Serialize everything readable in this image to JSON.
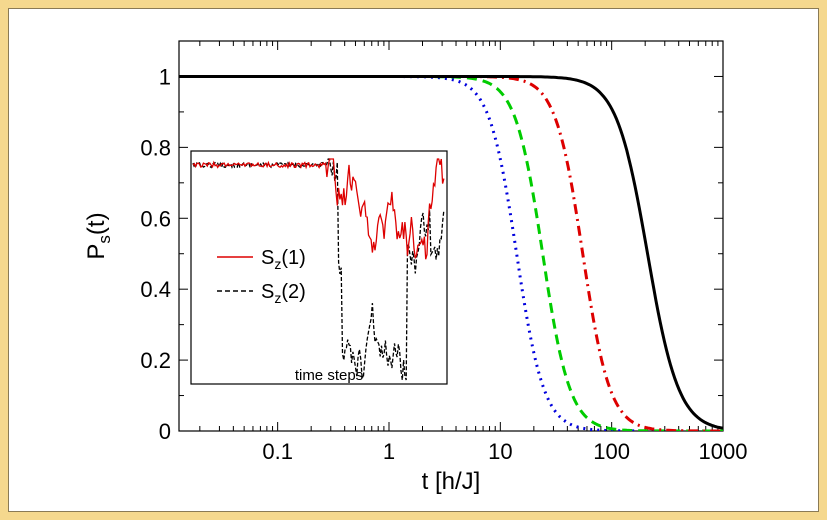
{
  "chart_data": {
    "type": "line",
    "xlabel": "t [h/J]",
    "ylabel_main": "P",
    "ylabel_sub": "s",
    "ylabel_tail": "(t)",
    "x_scale": "log",
    "xlim": [
      0.013,
      1000
    ],
    "ylim": [
      0,
      1.1
    ],
    "x_ticks": [
      {
        "value": 0.1,
        "label": "0.1"
      },
      {
        "value": 1,
        "label": "1"
      },
      {
        "value": 10,
        "label": "10"
      },
      {
        "value": 100,
        "label": "100"
      },
      {
        "value": 1000,
        "label": "1000"
      }
    ],
    "y_ticks": [
      {
        "value": 0,
        "label": "0"
      },
      {
        "value": 0.2,
        "label": "0.2"
      },
      {
        "value": 0.4,
        "label": "0.4"
      },
      {
        "value": 0.6,
        "label": "0.6"
      },
      {
        "value": 0.8,
        "label": "0.8"
      },
      {
        "value": 1,
        "label": "1"
      }
    ],
    "series": [
      {
        "color": "#0000dd",
        "dash": "dotted",
        "t_half": 14,
        "width": 0.35
      },
      {
        "color": "#00cc00",
        "dash": "dashed",
        "t_half": 24,
        "width": 0.35
      },
      {
        "color": "#dd0000",
        "dash": "dashdot",
        "t_half": 55,
        "width": 0.35
      },
      {
        "color": "#000000",
        "dash": "solid",
        "t_half": 210,
        "width": 0.4
      }
    ],
    "grid": false
  },
  "inset": {
    "xlabel": "time steps",
    "legend": [
      {
        "main": "S",
        "sub": "z",
        "tail": "(1)",
        "color": "#dd0000",
        "dash": "solid"
      },
      {
        "main": "S",
        "sub": "z",
        "tail": "(2)",
        "color": "#000000",
        "dash": "dashed"
      }
    ]
  },
  "colors": {
    "border": "#f5d88e"
  }
}
